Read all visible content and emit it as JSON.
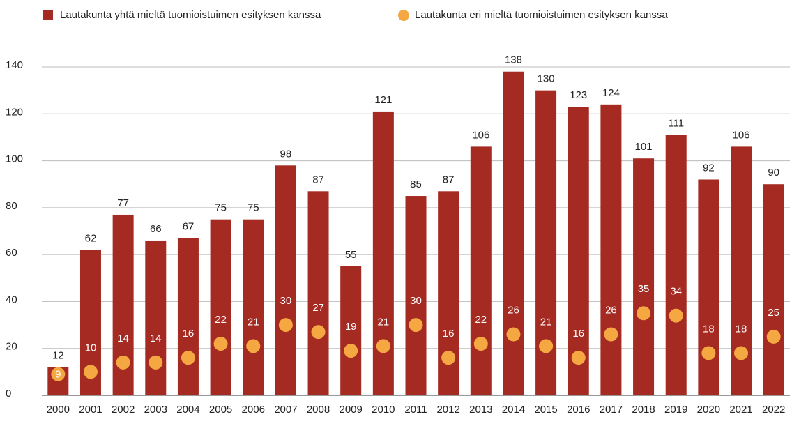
{
  "chart_data": {
    "type": "bar",
    "categories": [
      "2000",
      "2001",
      "2002",
      "2003",
      "2004",
      "2005",
      "2006",
      "2007",
      "2008",
      "2009",
      "2010",
      "2011",
      "2012",
      "2013",
      "2014",
      "2015",
      "2016",
      "2017",
      "2018",
      "2019",
      "2020",
      "2021",
      "2022"
    ],
    "series": [
      {
        "name": "Lautakunta yhtä mieltä tuomioistuimen esityksen kanssa",
        "type": "bar",
        "color": "#a52a22",
        "values": [
          12,
          62,
          77,
          66,
          67,
          75,
          75,
          98,
          87,
          55,
          121,
          85,
          87,
          106,
          138,
          130,
          123,
          124,
          101,
          111,
          92,
          106,
          90
        ]
      },
      {
        "name": "Lautakunta eri mieltä tuomioistuimen esityksen kanssa",
        "type": "scatter",
        "color": "#f5a742",
        "values": [
          9,
          10,
          14,
          14,
          16,
          22,
          21,
          30,
          27,
          19,
          21,
          30,
          16,
          22,
          26,
          21,
          16,
          26,
          35,
          34,
          18,
          18,
          25
        ]
      }
    ],
    "ylim": [
      0,
      140
    ],
    "yticks": [
      0,
      20,
      40,
      60,
      80,
      100,
      120,
      140
    ],
    "grid": true,
    "legend": "top"
  }
}
